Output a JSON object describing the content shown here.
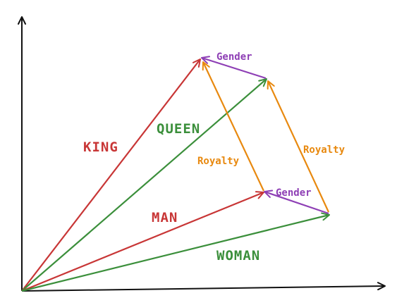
{
  "labels": {
    "king": "KING",
    "queen": "QUEEN",
    "man": "MAN",
    "woman": "WOMAN",
    "gender_top": "Gender",
    "gender_bottom": "Gender",
    "royalty_left": "Royalty",
    "royalty_right": "Royalty"
  },
  "colors": {
    "axis": "#111111",
    "red": "#c83636",
    "green": "#3b8f3b",
    "orange": "#e8890f",
    "purple": "#8e3fb5"
  }
}
